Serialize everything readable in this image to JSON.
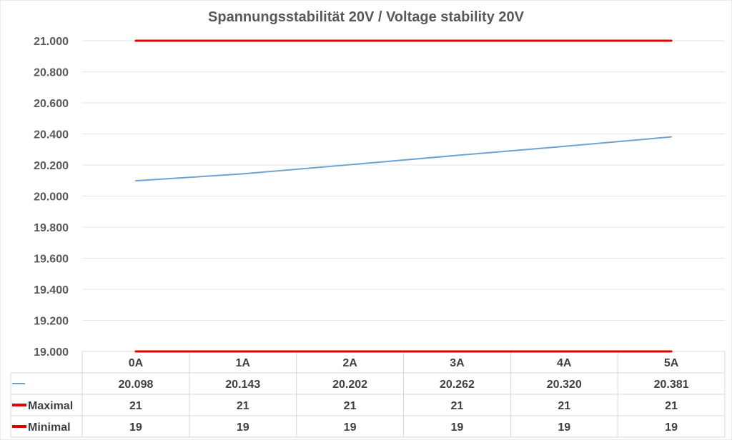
{
  "chart_data": {
    "type": "line",
    "title": "Spannungsstabilität 20V / Voltage stability 20V",
    "categories": [
      "0A",
      "1A",
      "2A",
      "3A",
      "4A",
      "5A"
    ],
    "series": [
      {
        "name": "",
        "color": "#6fa3cf",
        "values": [
          20.098,
          20.143,
          20.202,
          20.262,
          20.32,
          20.381
        ],
        "labels": [
          "20.098",
          "20.143",
          "20.202",
          "20.262",
          "20.320",
          "20.381"
        ]
      },
      {
        "name": "Maximal",
        "color": "#e00000",
        "values": [
          21,
          21,
          21,
          21,
          21,
          21
        ],
        "labels": [
          "21",
          "21",
          "21",
          "21",
          "21",
          "21"
        ]
      },
      {
        "name": "Minimal",
        "color": "#e00000",
        "values": [
          19,
          19,
          19,
          19,
          19,
          19
        ],
        "labels": [
          "19",
          "19",
          "19",
          "19",
          "19",
          "19"
        ]
      }
    ],
    "yticks": [
      "19.000",
      "19.200",
      "19.400",
      "19.600",
      "19.800",
      "20.000",
      "20.200",
      "20.400",
      "20.600",
      "20.800",
      "21.000"
    ],
    "ylim": [
      19,
      21
    ],
    "grid": true,
    "legend": "data-table"
  }
}
